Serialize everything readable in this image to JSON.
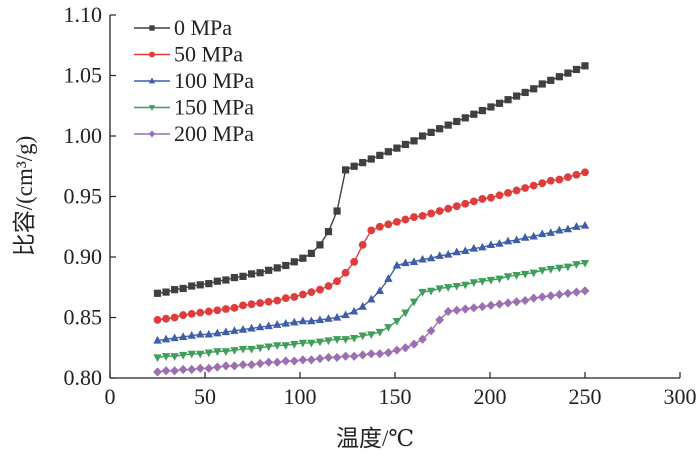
{
  "chart_data": {
    "type": "line",
    "title": "",
    "xlabel": "温度/℃",
    "ylabel": "比容/(cm³/g)",
    "xlim": [
      0,
      300
    ],
    "ylim": [
      0.8,
      1.1
    ],
    "xticks": [
      "0",
      "50",
      "100",
      "150",
      "200",
      "250",
      "300"
    ],
    "yticks": [
      "0.80",
      "0.85",
      "0.90",
      "0.95",
      "1.00",
      "1.05",
      "1.10"
    ],
    "grid": false,
    "legend_position": "top-left",
    "x": [
      25,
      29.5,
      34,
      38.5,
      43,
      47.5,
      52,
      56.5,
      61,
      65.5,
      70,
      74.5,
      79,
      83.5,
      88,
      92.5,
      97,
      101.5,
      106,
      110.5,
      115,
      119.5,
      124,
      128.5,
      133,
      137.5,
      142,
      146.5,
      151,
      155.5,
      160,
      164.5,
      169,
      173.5,
      178,
      182.5,
      187,
      191.5,
      196,
      200.5,
      205,
      209.5,
      214,
      218.5,
      223,
      227.5,
      232,
      236.5,
      241,
      245.5,
      250
    ],
    "series": [
      {
        "name": "0 MPa",
        "color": "#404040",
        "marker": "square",
        "values": [
          0.87,
          0.871,
          0.873,
          0.874,
          0.876,
          0.877,
          0.878,
          0.88,
          0.881,
          0.883,
          0.884,
          0.886,
          0.887,
          0.889,
          0.891,
          0.893,
          0.896,
          0.899,
          0.903,
          0.91,
          0.921,
          0.938,
          0.972,
          0.975,
          0.978,
          0.981,
          0.984,
          0.987,
          0.99,
          0.993,
          0.996,
          1.0,
          1.003,
          1.006,
          1.009,
          1.012,
          1.015,
          1.018,
          1.021,
          1.024,
          1.027,
          1.03,
          1.033,
          1.036,
          1.039,
          1.043,
          1.046,
          1.049,
          1.052,
          1.055,
          1.058
        ]
      },
      {
        "name": "50 MPa",
        "color": "#e03c3c",
        "marker": "circle",
        "values": [
          0.848,
          0.849,
          0.85,
          0.852,
          0.853,
          0.854,
          0.855,
          0.856,
          0.857,
          0.858,
          0.86,
          0.861,
          0.862,
          0.863,
          0.864,
          0.866,
          0.867,
          0.869,
          0.871,
          0.873,
          0.876,
          0.88,
          0.887,
          0.896,
          0.91,
          0.922,
          0.925,
          0.927,
          0.929,
          0.931,
          0.933,
          0.934,
          0.936,
          0.938,
          0.94,
          0.942,
          0.944,
          0.946,
          0.948,
          0.949,
          0.951,
          0.953,
          0.955,
          0.957,
          0.959,
          0.961,
          0.963,
          0.964,
          0.966,
          0.968,
          0.97
        ]
      },
      {
        "name": "100 MPa",
        "color": "#3f5ea8",
        "marker": "triangle-up",
        "values": [
          0.831,
          0.832,
          0.833,
          0.834,
          0.835,
          0.836,
          0.836,
          0.837,
          0.838,
          0.839,
          0.84,
          0.841,
          0.842,
          0.843,
          0.844,
          0.845,
          0.846,
          0.847,
          0.847,
          0.848,
          0.849,
          0.85,
          0.852,
          0.855,
          0.859,
          0.865,
          0.872,
          0.882,
          0.893,
          0.895,
          0.896,
          0.898,
          0.899,
          0.901,
          0.902,
          0.904,
          0.905,
          0.907,
          0.908,
          0.91,
          0.911,
          0.913,
          0.914,
          0.916,
          0.917,
          0.919,
          0.92,
          0.922,
          0.923,
          0.925,
          0.926
        ]
      },
      {
        "name": "150 MPa",
        "color": "#3f9e5a",
        "marker": "triangle-down",
        "values": [
          0.817,
          0.818,
          0.818,
          0.819,
          0.82,
          0.82,
          0.821,
          0.822,
          0.822,
          0.823,
          0.824,
          0.824,
          0.825,
          0.826,
          0.827,
          0.827,
          0.828,
          0.829,
          0.829,
          0.83,
          0.831,
          0.832,
          0.832,
          0.833,
          0.835,
          0.836,
          0.838,
          0.842,
          0.847,
          0.854,
          0.863,
          0.871,
          0.872,
          0.874,
          0.875,
          0.876,
          0.877,
          0.879,
          0.88,
          0.881,
          0.882,
          0.884,
          0.885,
          0.886,
          0.887,
          0.889,
          0.89,
          0.891,
          0.892,
          0.894,
          0.895
        ]
      },
      {
        "name": "200 MPa",
        "color": "#9b6fb0",
        "marker": "diamond",
        "values": [
          0.805,
          0.806,
          0.806,
          0.807,
          0.807,
          0.808,
          0.808,
          0.809,
          0.81,
          0.81,
          0.811,
          0.811,
          0.812,
          0.813,
          0.813,
          0.814,
          0.814,
          0.815,
          0.815,
          0.816,
          0.817,
          0.817,
          0.818,
          0.818,
          0.819,
          0.82,
          0.82,
          0.821,
          0.823,
          0.825,
          0.828,
          0.832,
          0.839,
          0.848,
          0.855,
          0.856,
          0.857,
          0.858,
          0.859,
          0.86,
          0.861,
          0.862,
          0.863,
          0.864,
          0.866,
          0.867,
          0.868,
          0.869,
          0.87,
          0.871,
          0.872
        ]
      }
    ]
  }
}
